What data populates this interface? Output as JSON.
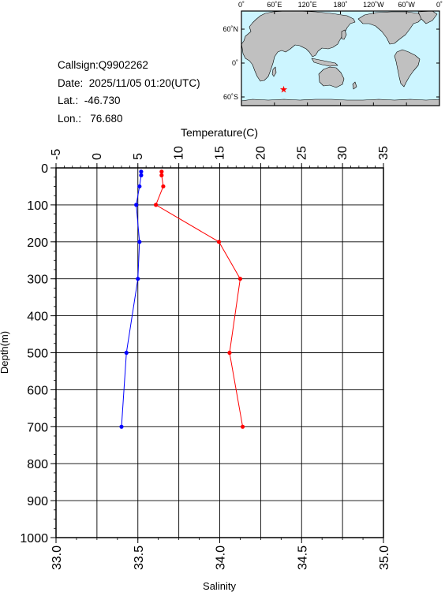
{
  "info": {
    "callsign": "Callsign:Q9902262",
    "date": "Date:  2025/11/05 01:20(UTC)",
    "lat": "Lat.:  -46.730",
    "lon": "Lon.:   76.680"
  },
  "map": {
    "top_labels": [
      "0˚",
      "60˚E",
      "120˚E",
      "180˚",
      "120˚W",
      "60˚W",
      "0˚"
    ],
    "lat_labels": [
      "60˚N",
      "0˚",
      "60˚S"
    ],
    "marker": {
      "lon": 76.68,
      "lat": -46.73,
      "symbol": "★",
      "color": "#ff0000"
    },
    "ocean_color": "#ccf5ff",
    "land_color": "#c0c0c0"
  },
  "chart_data": {
    "type": "line",
    "title": "",
    "top_axis": {
      "label": "Temperature(C)",
      "range": [
        -5,
        35
      ],
      "ticks": [
        "-5",
        "0",
        "5",
        "10",
        "15",
        "20",
        "25",
        "30",
        "35"
      ]
    },
    "bottom_axis": {
      "label": "Salinity",
      "range": [
        33.0,
        35.0
      ],
      "ticks": [
        "33.0",
        "33.5",
        "34.0",
        "34.5",
        "35.0"
      ]
    },
    "y_axis": {
      "label": "Depth(m)",
      "range": [
        0,
        1000
      ],
      "inverted": true,
      "ticks": [
        "0",
        "100",
        "200",
        "300",
        "400",
        "500",
        "600",
        "700",
        "800",
        "900",
        "1000"
      ]
    },
    "grid": true,
    "series": [
      {
        "axis": "temperature",
        "color": "#ff0000",
        "depth": [
          10,
          20,
          50,
          100,
          200,
          300,
          500,
          700
        ],
        "values": [
          7.9,
          7.9,
          8.1,
          7.2,
          14.9,
          17.5,
          16.2,
          17.8
        ]
      },
      {
        "axis": "salinity",
        "color": "#0000ff",
        "depth": [
          10,
          20,
          50,
          100,
          200,
          300,
          500,
          700
        ],
        "values": [
          33.52,
          33.52,
          33.51,
          33.49,
          33.51,
          33.5,
          33.43,
          33.4
        ]
      }
    ]
  }
}
